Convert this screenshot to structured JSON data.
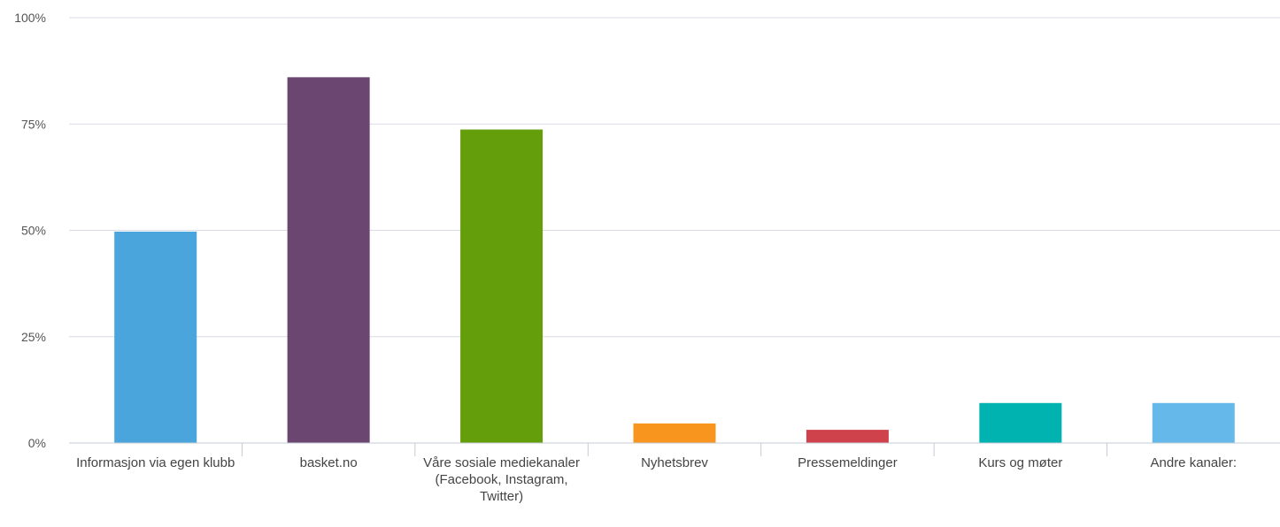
{
  "chart_data": {
    "type": "bar",
    "categories": [
      "Informasjon via egen klubb",
      "basket.no",
      "Våre sosiale mediekanaler (Facebook, Instagram, Twitter)",
      "Nyhetsbrev",
      "Pressemeldinger",
      "Kurs og møter",
      "Andre kanaler:"
    ],
    "values": [
      49.7,
      86.0,
      73.7,
      4.6,
      3.1,
      9.4,
      9.4
    ],
    "colors": [
      "#4aa5dc",
      "#6b4670",
      "#649e0b",
      "#f7951f",
      "#d0424b",
      "#00b2b0",
      "#65b9ea"
    ],
    "ylim": [
      0,
      100
    ],
    "yticks": [
      "0%",
      "25%",
      "50%",
      "75%",
      "100%"
    ],
    "ytick_values": [
      0,
      25,
      50,
      75,
      100
    ],
    "grid": true,
    "gridline_color": "#d9dde3",
    "axis_color": "#c5cbd3"
  }
}
